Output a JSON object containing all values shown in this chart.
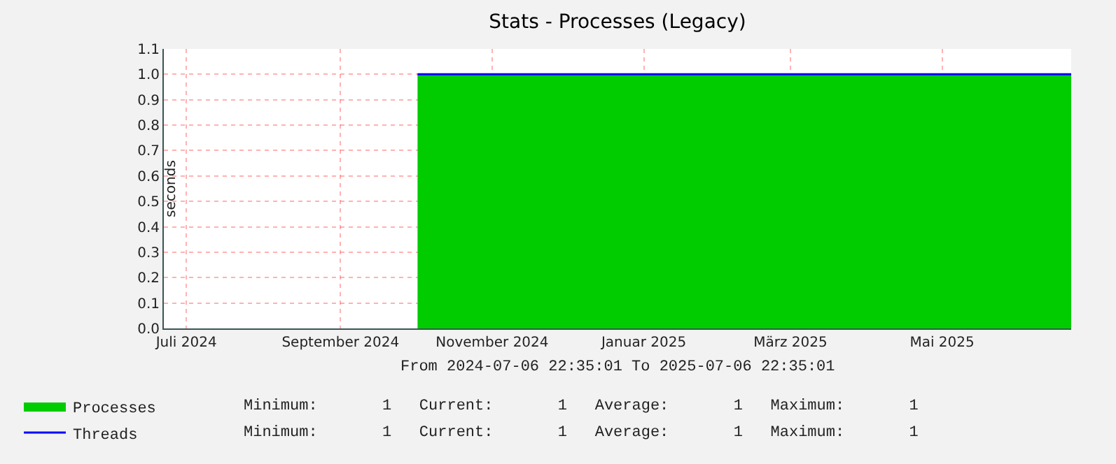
{
  "chart_data": {
    "type": "area",
    "title": "Stats - Processes (Legacy)",
    "ylabel": "seconds",
    "xlim": [
      "2024-07-06T22:35",
      "2025-07-06T22:35"
    ],
    "xticks": [
      {
        "value": "2024-07-16",
        "label": "Juli 2024"
      },
      {
        "value": "2024-09-16",
        "label": "September 2024"
      },
      {
        "value": "2024-11-16",
        "label": "November 2024"
      },
      {
        "value": "2025-01-16",
        "label": "Januar 2025"
      },
      {
        "value": "2025-03-16",
        "label": "März 2025"
      },
      {
        "value": "2025-05-16",
        "label": "Mai 2025"
      }
    ],
    "ylim": [
      0,
      1.1
    ],
    "yticks": [
      {
        "value": 0,
        "label": "0.0"
      },
      {
        "value": 0.1,
        "label": "0.1"
      },
      {
        "value": 0.2,
        "label": "0.2"
      },
      {
        "value": 0.3,
        "label": "0.3"
      },
      {
        "value": 0.4,
        "label": "0.4"
      },
      {
        "value": 0.5,
        "label": "0.5"
      },
      {
        "value": 0.6,
        "label": "0.6"
      },
      {
        "value": 0.7,
        "label": "0.7"
      },
      {
        "value": 0.8,
        "label": "0.8"
      },
      {
        "value": 0.9,
        "label": "0.9"
      },
      {
        "value": 1,
        "label": "1.0"
      },
      {
        "value": 1.1,
        "label": "1.1"
      }
    ],
    "grid": true,
    "legend": "bottom left",
    "series": [
      {
        "name": "Processes",
        "type": "area",
        "color": "#00cc00",
        "x": [
          "2024-10-17",
          "2025-07-06T22:35"
        ],
        "values": [
          1,
          1
        ]
      },
      {
        "name": "Threads",
        "type": "line",
        "color": "#0000ff",
        "x": [
          "2024-10-17",
          "2025-07-06T22:35"
        ],
        "values": [
          1,
          1
        ]
      }
    ],
    "annotations": [
      "From 2024-07-06 22:35:01 To 2025-07-06 22:35:01",
      "Minimum:       1   Current:       1   Average:       1   Maximum:       1",
      "Minimum:       1   Current:       1   Average:       1   Maximum:       1"
    ]
  }
}
